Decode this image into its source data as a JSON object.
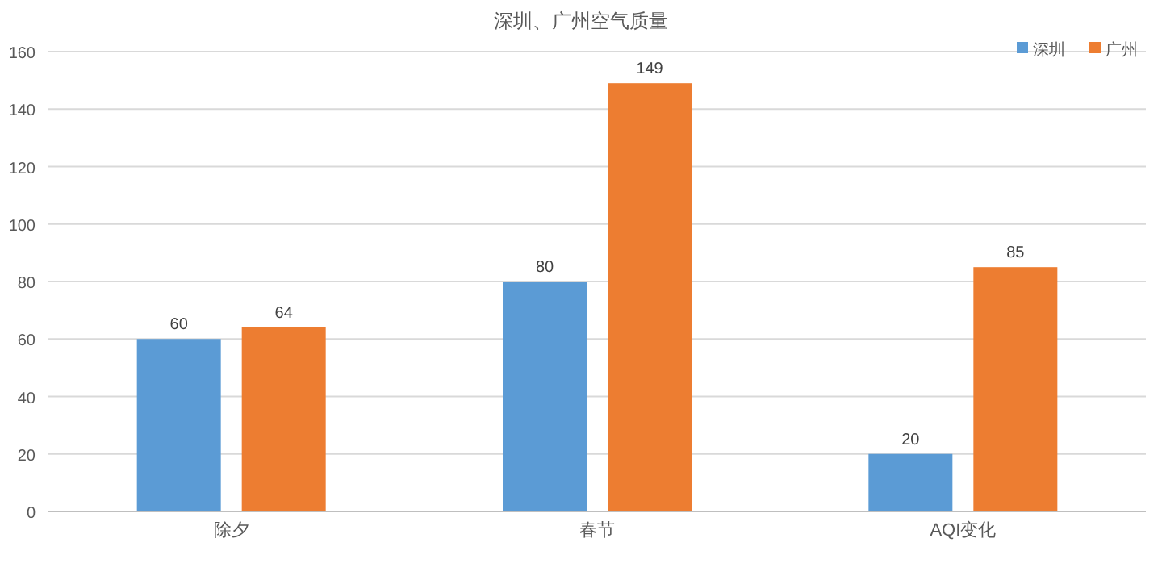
{
  "chart_data": {
    "type": "bar",
    "title": "深圳、广州空气质量",
    "categories": [
      "除夕",
      "春节",
      "AQI变化"
    ],
    "series": [
      {
        "name": "深圳",
        "color": "#5b9bd5",
        "values": [
          60,
          80,
          20
        ]
      },
      {
        "name": "广州",
        "color": "#ed7d31",
        "values": [
          64,
          149,
          85
        ]
      }
    ],
    "ylim": [
      0,
      160
    ],
    "yticks": [
      0,
      20,
      40,
      60,
      80,
      100,
      120,
      140,
      160
    ],
    "grid": "y",
    "legend": "top right",
    "data_labels": true
  }
}
